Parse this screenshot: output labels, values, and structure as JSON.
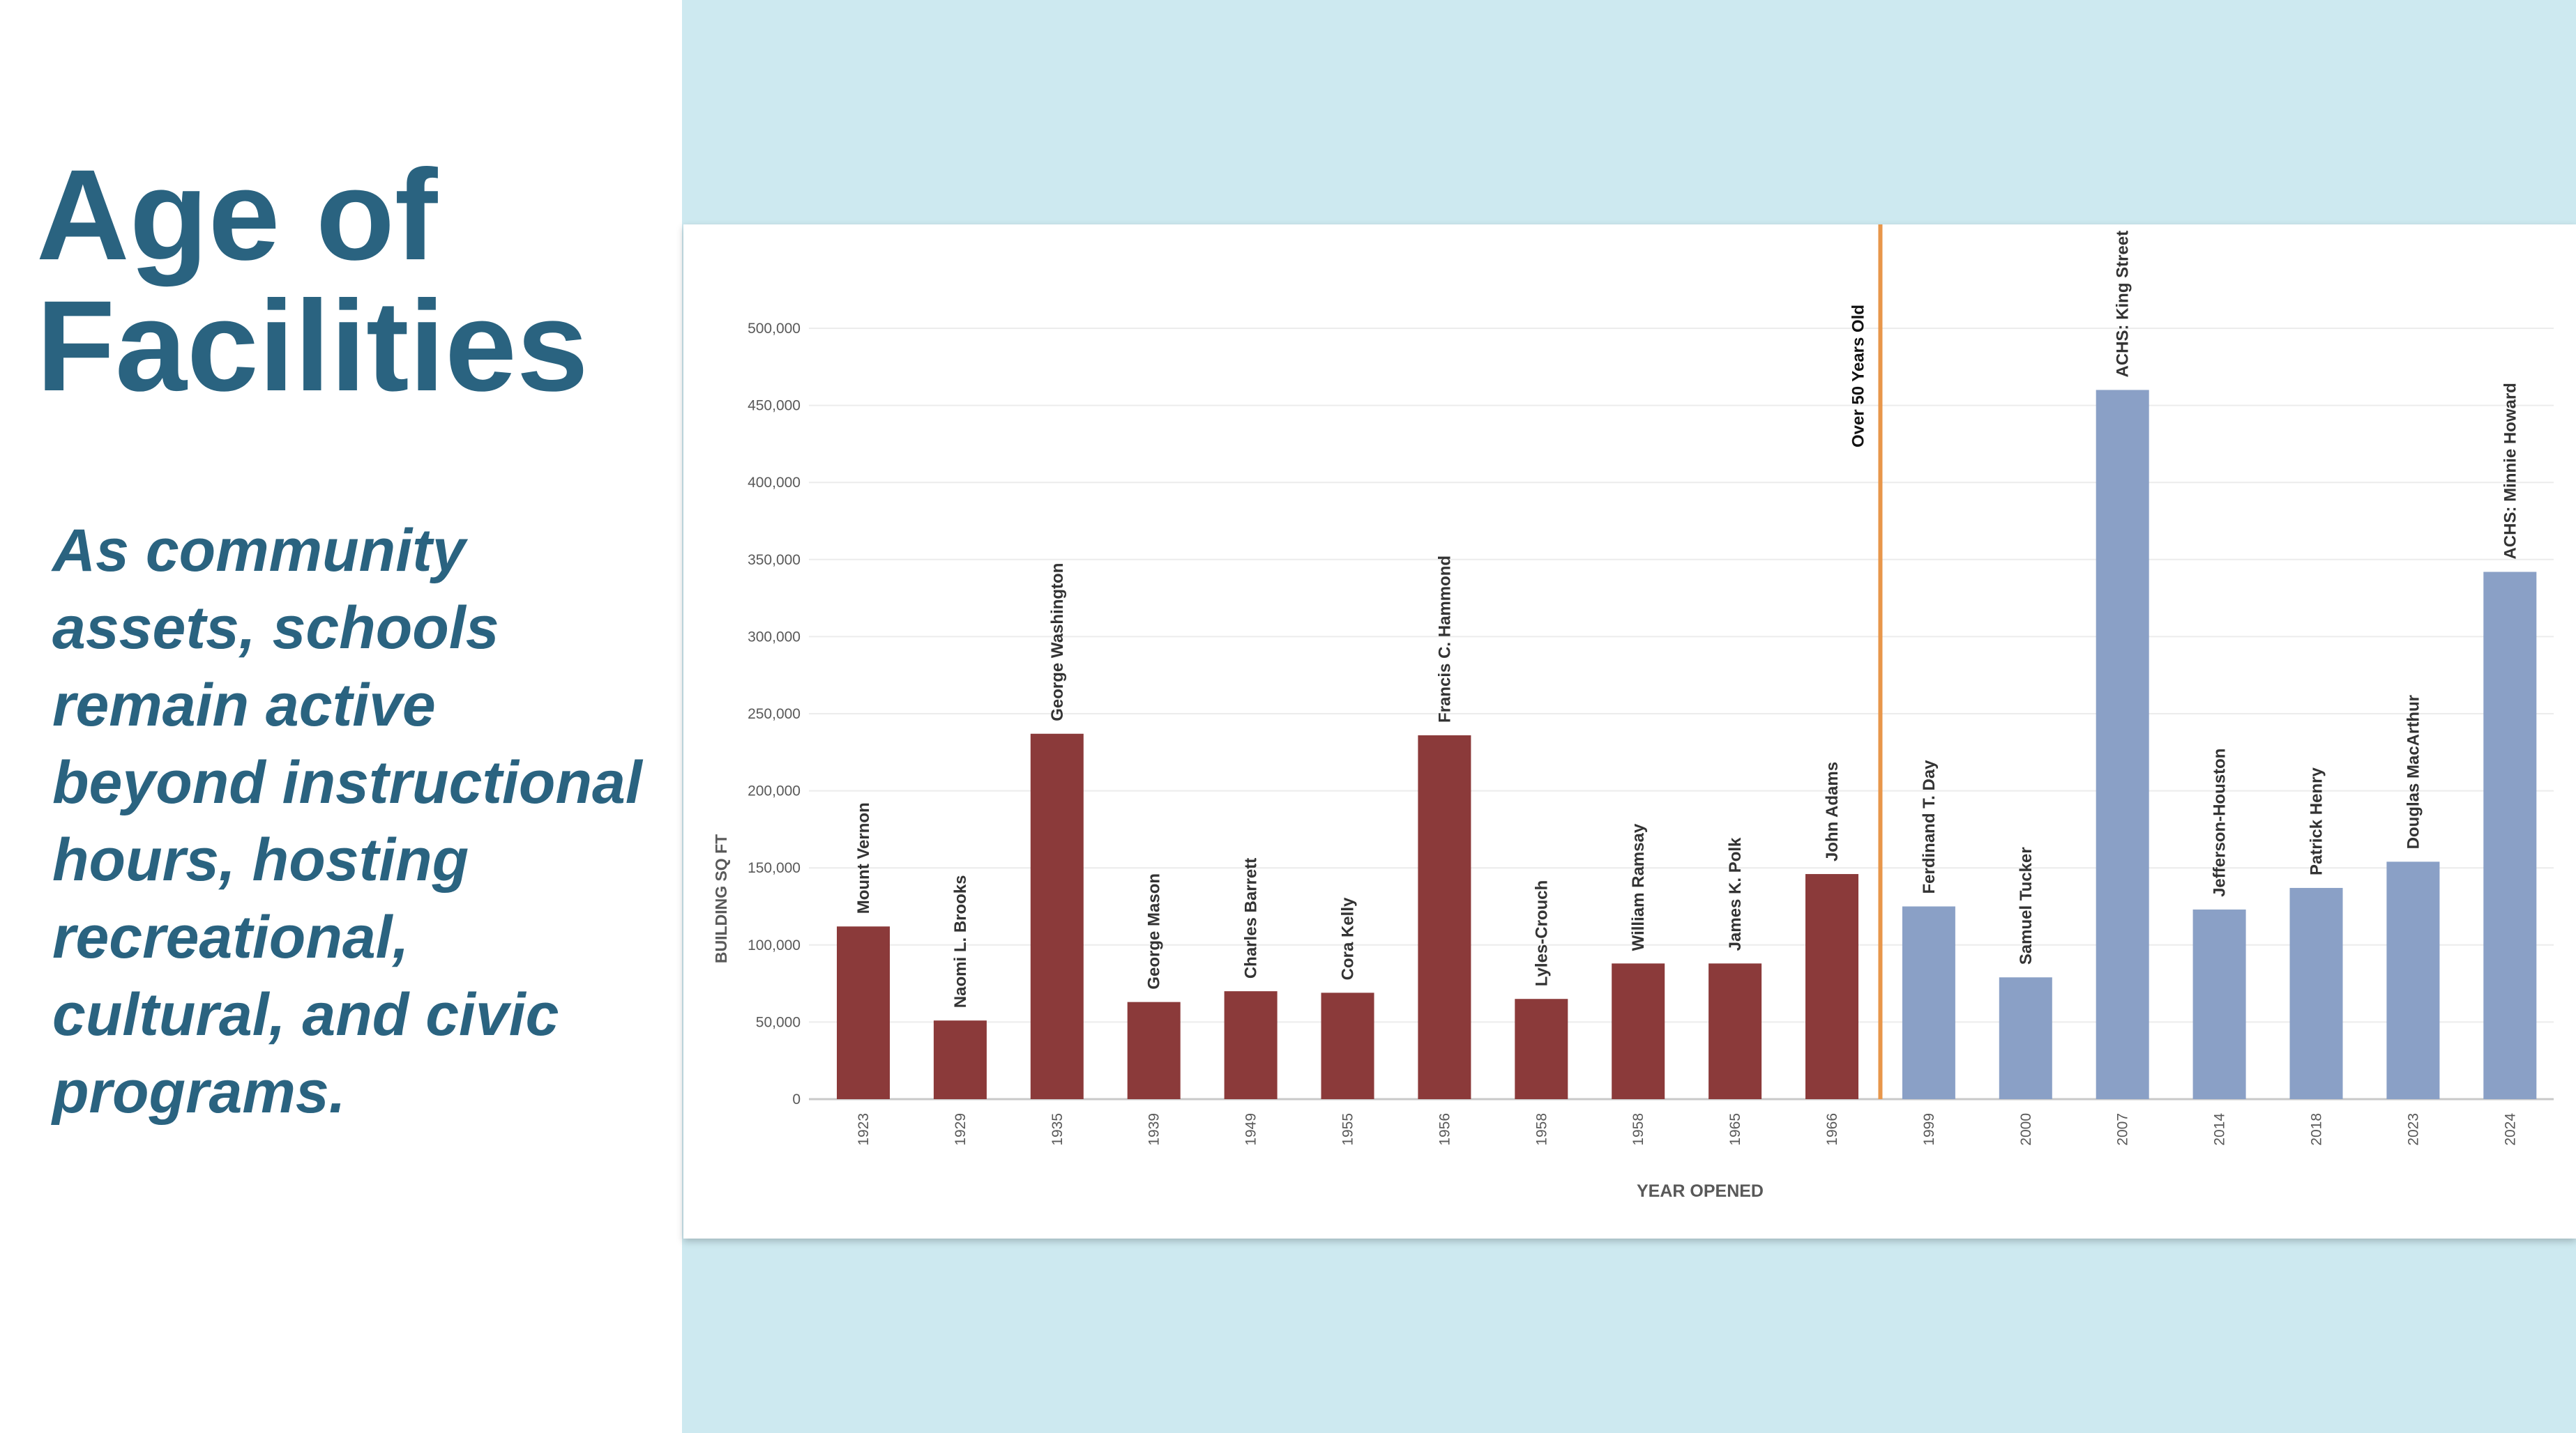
{
  "slide": {
    "title": "Age of\nFacilities",
    "body": "As community assets, schools remain active beyond instructional hours, hosting recreational, cultural, and civic programs."
  },
  "chart_data": {
    "type": "bar",
    "xlabel": "YEAR OPENED",
    "ylabel": "BUILDING SQ FT",
    "ylim": [
      0,
      500000
    ],
    "yticks": [
      0,
      50000,
      100000,
      150000,
      200000,
      250000,
      300000,
      350000,
      400000,
      450000,
      500000
    ],
    "ytick_labels": [
      "0",
      "50,000",
      "100,000",
      "150,000",
      "200,000",
      "250,000",
      "300,000",
      "350,000",
      "400,000",
      "450,000",
      "500,000"
    ],
    "grid": true,
    "colors": {
      "over_50": "#8b3a3a",
      "under_50": "#8aa0c6",
      "divider": "#e8964a"
    },
    "divider_label": "Over 50 Years Old",
    "bars": [
      {
        "year": "1923",
        "school": "Mount Vernon",
        "value": 112000,
        "group": "over_50"
      },
      {
        "year": "1929",
        "school": "Naomi L. Brooks",
        "value": 51000,
        "group": "over_50"
      },
      {
        "year": "1935",
        "school": "George Washington",
        "value": 237000,
        "group": "over_50"
      },
      {
        "year": "1939",
        "school": "George Mason",
        "value": 63000,
        "group": "over_50"
      },
      {
        "year": "1949",
        "school": "Charles Barrett",
        "value": 70000,
        "group": "over_50"
      },
      {
        "year": "1955",
        "school": "Cora Kelly",
        "value": 69000,
        "group": "over_50"
      },
      {
        "year": "1956",
        "school": "Francis C. Hammond",
        "value": 236000,
        "group": "over_50"
      },
      {
        "year": "1958",
        "school": "Lyles-Crouch",
        "value": 65000,
        "group": "over_50"
      },
      {
        "year": "1958",
        "school": "William Ramsay",
        "value": 88000,
        "group": "over_50"
      },
      {
        "year": "1965",
        "school": "James K. Polk",
        "value": 88000,
        "group": "over_50"
      },
      {
        "year": "1966",
        "school": "John Adams",
        "value": 146000,
        "group": "over_50"
      },
      {
        "year": "1999",
        "school": "Ferdinand T. Day",
        "value": 125000,
        "group": "under_50"
      },
      {
        "year": "2000",
        "school": "Samuel Tucker",
        "value": 79000,
        "group": "under_50"
      },
      {
        "year": "2007",
        "school": "ACHS: King Street",
        "value": 460000,
        "group": "under_50"
      },
      {
        "year": "2014",
        "school": "Jefferson-Houston",
        "value": 123000,
        "group": "under_50"
      },
      {
        "year": "2018",
        "school": "Patrick Henry",
        "value": 137000,
        "group": "under_50"
      },
      {
        "year": "2023",
        "school": "Douglas MacArthur",
        "value": 154000,
        "group": "under_50"
      },
      {
        "year": "2024",
        "school": "ACHS: Minnie Howard",
        "value": 342000,
        "group": "under_50"
      }
    ]
  }
}
